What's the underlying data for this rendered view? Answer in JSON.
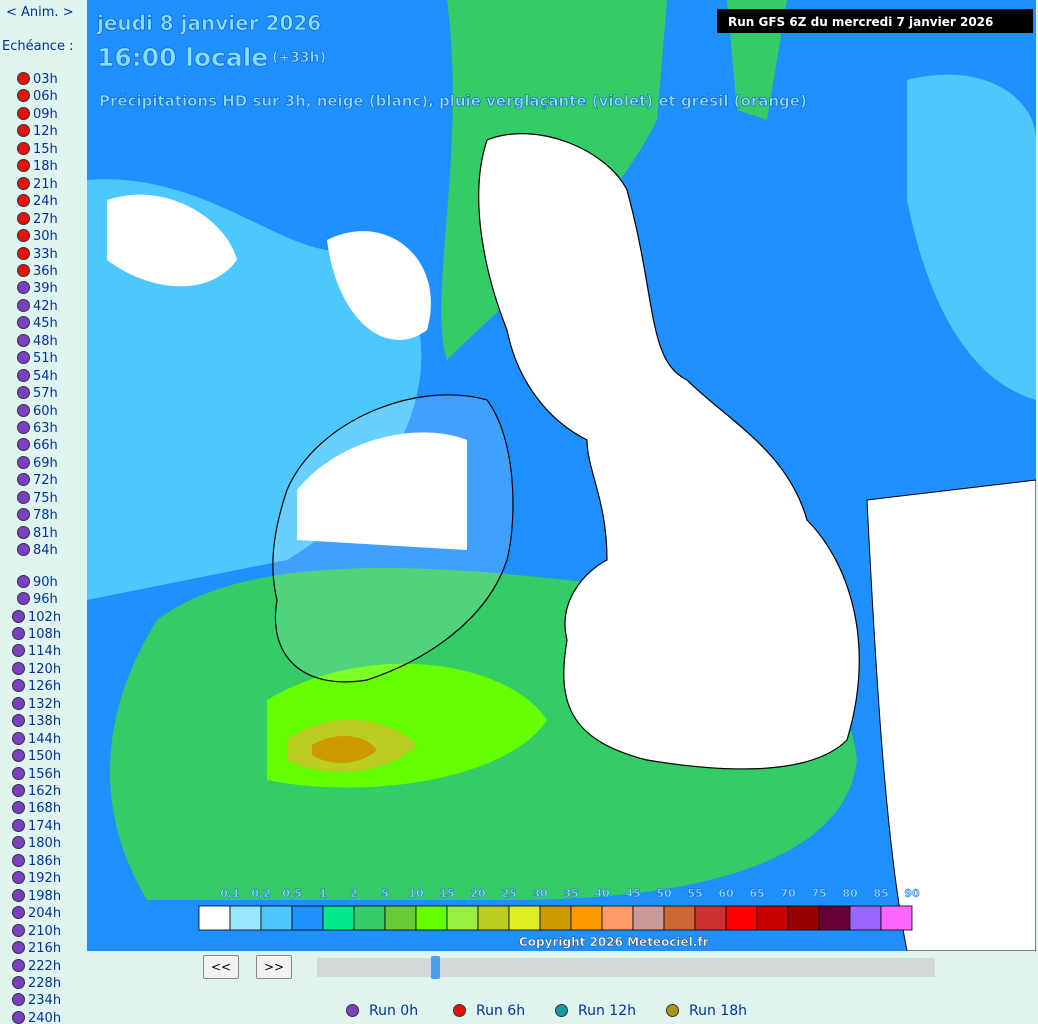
{
  "sidebar": {
    "anim": "< Anim. >",
    "label": "Echéance :",
    "groups": [
      {
        "color": "#e8120c",
        "hours": [
          "03h",
          "06h",
          "09h",
          "12h",
          "15h",
          "18h",
          "21h",
          "24h",
          "27h",
          "30h",
          "33h",
          "36h"
        ]
      },
      {
        "color": "#7b3fc4",
        "hours": [
          "39h",
          "42h",
          "45h",
          "48h",
          "51h",
          "54h",
          "57h",
          "60h",
          "63h",
          "66h",
          "69h",
          "72h",
          "75h",
          "78h",
          "81h",
          "84h"
        ]
      },
      {
        "color": "#7b3fc4",
        "hours": [
          "90h",
          "96h",
          "102h",
          "108h",
          "114h",
          "120h",
          "126h",
          "132h",
          "138h",
          "144h",
          "150h",
          "156h",
          "162h",
          "168h",
          "174h",
          "180h",
          "186h",
          "192h",
          "198h",
          "204h",
          "210h",
          "216h",
          "222h",
          "228h",
          "234h",
          "240h"
        ]
      }
    ]
  },
  "map": {
    "date": "jeudi 8 janvier 2026",
    "time": "16:00 locale",
    "offset": "(+33h)",
    "subtitle": "Précipitations HD sur 3h, neige (blanc), pluie verglaçante (violet) et grésil (orange)",
    "run": "Run GFS 6Z du mercredi 7 janvier 2026",
    "copyright": "Copyright 2026 Meteociel.fr",
    "scale": {
      "labels": [
        "0,1",
        "0,2",
        "0,5",
        "1",
        "2",
        "5",
        "10",
        "15",
        "20",
        "25",
        "30",
        "35",
        "40",
        "45",
        "50",
        "55",
        "60",
        "65",
        "70",
        "75",
        "80",
        "85",
        "90"
      ],
      "colors": [
        "#ffffff",
        "#99e6ff",
        "#4dc8ff",
        "#1e90ff",
        "#00e68a",
        "#33cc66",
        "#66cc33",
        "#66ff00",
        "#99ee44",
        "#bbcc22",
        "#ddee22",
        "#cc9900",
        "#ff9900",
        "#ff9966",
        "#cc9999",
        "#cc6633",
        "#cc3333",
        "#ff0000",
        "#cc0000",
        "#990000",
        "#660033",
        "#9966ff",
        "#ff66ff"
      ]
    }
  },
  "controls": {
    "prev": "<<",
    "next": ">>"
  },
  "runs": [
    {
      "label": "Run 0h",
      "color": "#7b3fc4"
    },
    {
      "label": "Run 6h",
      "color": "#e8120c"
    },
    {
      "label": "Run 12h",
      "color": "#1a9aa0"
    },
    {
      "label": "Run 18h",
      "color": "#a89a10"
    }
  ]
}
